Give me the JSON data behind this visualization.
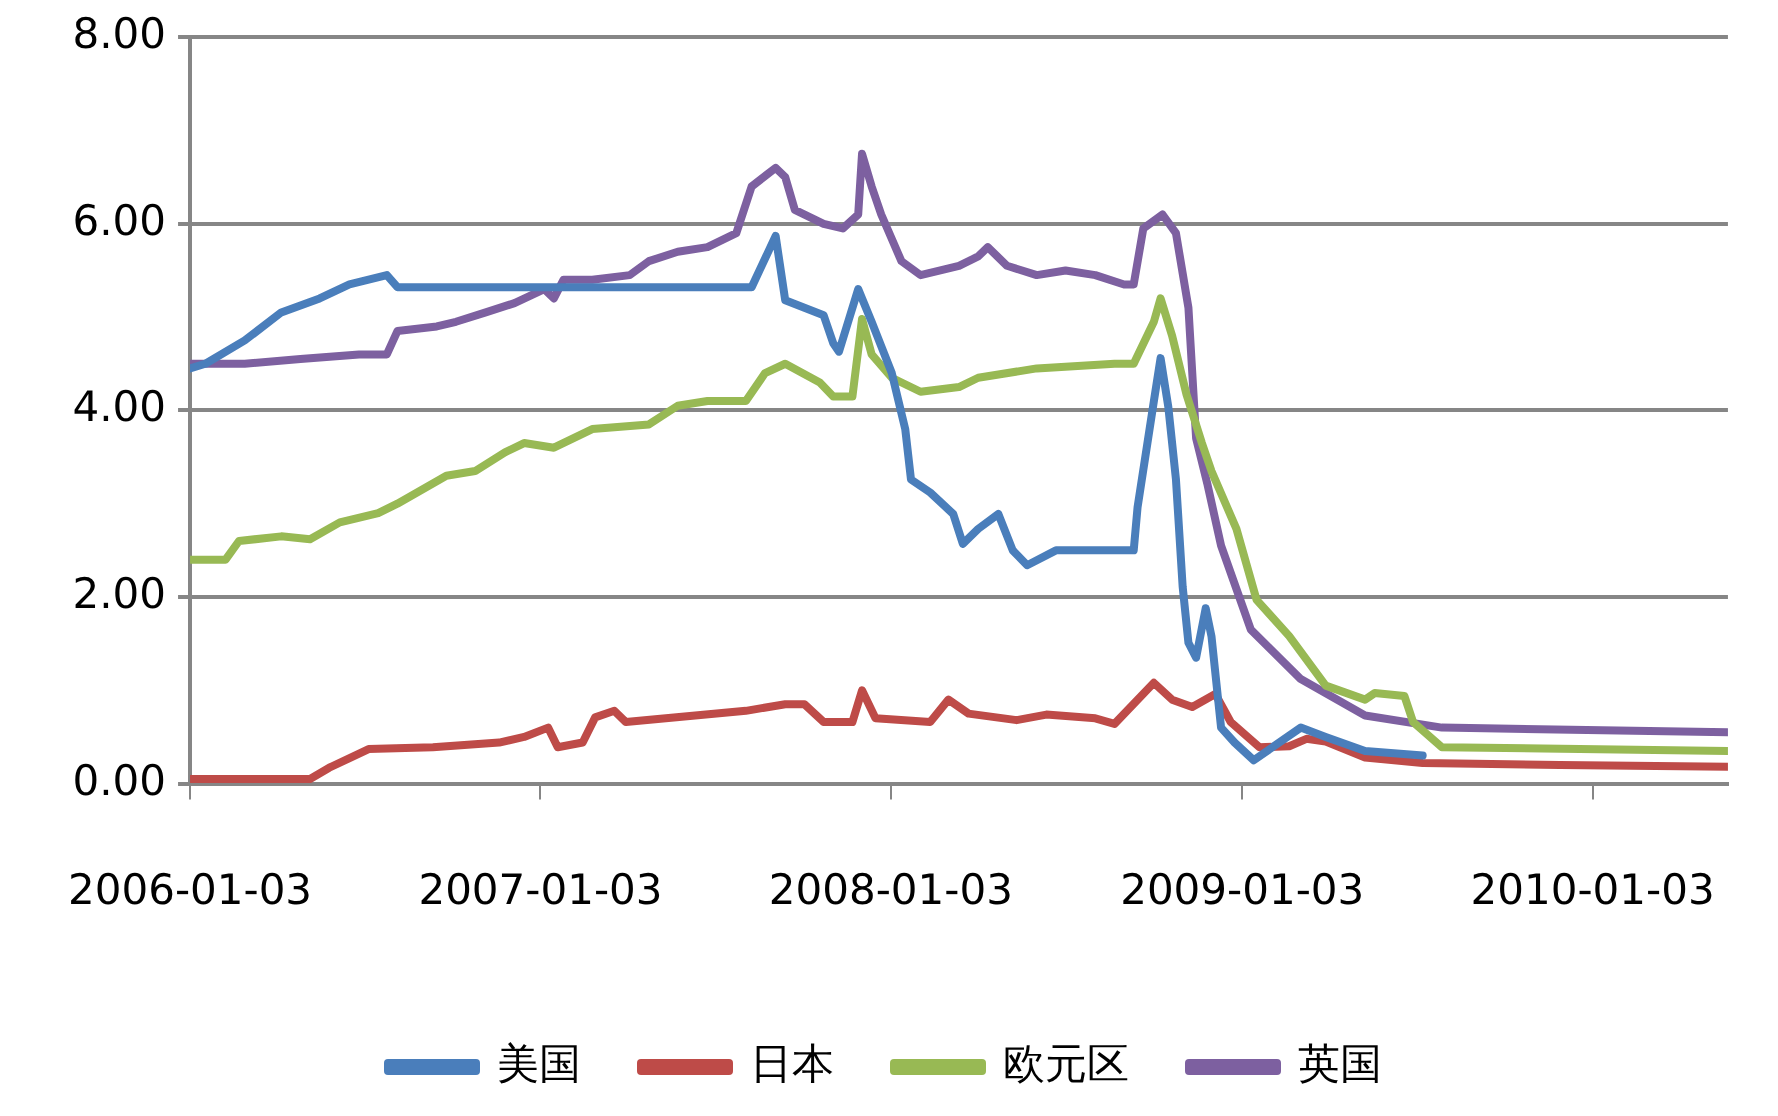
{
  "chart_data": {
    "type": "line",
    "ylim": [
      0,
      8
    ],
    "yticks": [
      {
        "value": 0,
        "label": "0.00"
      },
      {
        "value": 2,
        "label": "2.00"
      },
      {
        "value": 4,
        "label": "4.00"
      },
      {
        "value": 6,
        "label": "6.00"
      },
      {
        "value": 8,
        "label": "8.00"
      }
    ],
    "xlim": [
      "2006-01-03",
      "2010-05-24"
    ],
    "xticks": [
      "2006-01-03",
      "2007-01-03",
      "2008-01-03",
      "2009-01-03",
      "2010-01-03"
    ],
    "grid": "y",
    "legend": "bottom",
    "marker": "none",
    "line_style": "solid",
    "series": [
      {
        "name": "美国",
        "color": "#4a7ebb",
        "x": [
          "2006-01-03",
          "2006-01-19",
          "2006-03-01",
          "2006-04-08",
          "2006-05-18",
          "2006-06-18",
          "2006-07-27",
          "2006-08-07",
          "2007-08-11",
          "2007-09-05",
          "2007-09-15",
          "2007-10-25",
          "2007-11-04",
          "2007-11-10",
          "2007-11-30",
          "2007-12-14",
          "2008-01-04",
          "2008-01-18",
          "2008-01-24",
          "2008-02-13",
          "2008-03-08",
          "2008-03-18",
          "2008-04-03",
          "2008-04-24",
          "2008-05-09",
          "2008-05-24",
          "2008-06-23",
          "2008-09-12",
          "2008-09-16",
          "2008-10-03",
          "2008-10-10",
          "2008-10-18",
          "2008-10-26",
          "2008-11-02",
          "2008-11-08",
          "2008-11-16",
          "2008-11-26",
          "2008-12-02",
          "2008-12-12",
          "2008-12-26",
          "2009-01-15",
          "2009-03-05",
          "2009-03-31",
          "2009-05-11",
          "2009-07-10"
        ],
        "values": [
          4.45,
          4.5,
          4.75,
          5.05,
          5.2,
          5.35,
          5.45,
          5.32,
          5.32,
          5.87,
          5.18,
          5.02,
          4.72,
          4.63,
          5.3,
          4.95,
          4.4,
          3.8,
          3.26,
          3.12,
          2.89,
          2.57,
          2.73,
          2.89,
          2.5,
          2.34,
          2.5,
          2.5,
          2.96,
          4.1,
          4.56,
          4.04,
          3.26,
          2.11,
          1.51,
          1.35,
          1.88,
          1.58,
          0.6,
          0.44,
          0.25,
          0.6,
          0.5,
          0.35,
          0.3
        ]
      },
      {
        "name": "日本",
        "color": "#be4b48",
        "x": [
          "2006-01-03",
          "2006-05-08",
          "2006-05-28",
          "2006-07-08",
          "2006-09-13",
          "2006-11-21",
          "2006-12-17",
          "2007-01-11",
          "2007-01-21",
          "2007-02-16",
          "2007-03-01",
          "2007-03-21",
          "2007-04-02",
          "2007-08-05",
          "2007-09-15",
          "2007-10-05",
          "2007-10-25",
          "2007-11-24",
          "2007-12-04",
          "2007-12-18",
          "2008-02-13",
          "2008-03-03",
          "2008-03-24",
          "2008-05-13",
          "2008-06-13",
          "2008-08-03",
          "2008-08-23",
          "2008-10-03",
          "2008-10-22",
          "2008-11-12",
          "2008-12-06",
          "2008-12-22",
          "2009-01-21",
          "2009-02-21",
          "2009-03-11",
          "2009-03-31",
          "2009-05-11",
          "2009-07-10",
          "2009-11-30",
          "2010-05-24"
        ],
        "values": [
          0.05,
          0.05,
          0.17,
          0.37,
          0.39,
          0.44,
          0.5,
          0.6,
          0.39,
          0.44,
          0.71,
          0.78,
          0.66,
          0.78,
          0.85,
          0.85,
          0.66,
          0.66,
          1.0,
          0.7,
          0.66,
          0.9,
          0.75,
          0.68,
          0.74,
          0.7,
          0.64,
          1.08,
          0.9,
          0.82,
          0.96,
          0.66,
          0.39,
          0.4,
          0.48,
          0.45,
          0.28,
          0.22,
          0.2,
          0.18
        ]
      },
      {
        "name": "欧元区",
        "color": "#98b954",
        "x": [
          "2006-01-03",
          "2006-02-09",
          "2006-02-23",
          "2006-04-08",
          "2006-05-08",
          "2006-06-08",
          "2006-07-18",
          "2006-08-07",
          "2006-09-27",
          "2006-10-27",
          "2006-11-27",
          "2006-12-17",
          "2007-01-17",
          "2007-02-26",
          "2007-04-26",
          "2007-05-26",
          "2007-06-26",
          "2007-08-05",
          "2007-08-25",
          "2007-09-15",
          "2007-10-21",
          "2007-11-04",
          "2007-11-24",
          "2007-12-04",
          "2007-12-14",
          "2008-01-04",
          "2008-02-03",
          "2008-03-14",
          "2008-04-03",
          "2008-06-03",
          "2008-08-23",
          "2008-09-12",
          "2008-10-03",
          "2008-10-10",
          "2008-10-22",
          "2008-11-06",
          "2008-11-22",
          "2008-12-02",
          "2008-12-28",
          "2009-01-18",
          "2009-02-21",
          "2009-03-31",
          "2009-05-11",
          "2009-05-21",
          "2009-06-21",
          "2009-06-30",
          "2009-07-30",
          "2010-05-24"
        ],
        "values": [
          2.4,
          2.4,
          2.6,
          2.65,
          2.62,
          2.8,
          2.9,
          3.0,
          3.3,
          3.35,
          3.55,
          3.65,
          3.6,
          3.8,
          3.85,
          4.05,
          4.1,
          4.1,
          4.4,
          4.5,
          4.3,
          4.15,
          4.15,
          4.98,
          4.6,
          4.35,
          4.2,
          4.25,
          4.35,
          4.45,
          4.5,
          4.5,
          4.95,
          5.2,
          4.8,
          4.17,
          3.65,
          3.35,
          2.73,
          1.97,
          1.58,
          1.05,
          0.9,
          0.97,
          0.94,
          0.66,
          0.39,
          0.35
        ]
      },
      {
        "name": "英国",
        "color": "#7d60a0",
        "x": [
          "2006-01-03",
          "2006-03-01",
          "2006-04-28",
          "2006-06-28",
          "2006-07-27",
          "2006-08-07",
          "2006-09-17",
          "2006-10-07",
          "2006-11-07",
          "2006-12-07",
          "2007-01-07",
          "2007-01-17",
          "2007-01-27",
          "2007-02-26",
          "2007-04-06",
          "2007-04-26",
          "2007-05-26",
          "2007-06-26",
          "2007-07-26",
          "2007-08-11",
          "2007-09-05",
          "2007-09-15",
          "2007-09-25",
          "2007-10-25",
          "2007-11-14",
          "2007-11-30",
          "2007-12-04",
          "2007-12-14",
          "2007-12-24",
          "2008-01-14",
          "2008-02-03",
          "2008-03-14",
          "2008-04-03",
          "2008-04-13",
          "2008-05-03",
          "2008-06-03",
          "2008-07-03",
          "2008-08-03",
          "2008-09-02",
          "2008-09-12",
          "2008-09-22",
          "2008-10-12",
          "2008-10-26",
          "2008-11-08",
          "2008-11-16",
          "2008-11-28",
          "2008-12-12",
          "2009-01-12",
          "2009-03-05",
          "2009-05-11",
          "2009-07-30",
          "2010-05-24"
        ],
        "values": [
          4.5,
          4.5,
          4.55,
          4.6,
          4.6,
          4.85,
          4.9,
          4.95,
          5.05,
          5.15,
          5.3,
          5.2,
          5.4,
          5.4,
          5.45,
          5.6,
          5.7,
          5.75,
          5.9,
          6.4,
          6.6,
          6.5,
          6.15,
          6.0,
          5.95,
          6.1,
          6.75,
          6.4,
          6.1,
          5.6,
          5.45,
          5.55,
          5.65,
          5.75,
          5.55,
          5.45,
          5.5,
          5.45,
          5.35,
          5.35,
          5.95,
          6.1,
          5.9,
          5.1,
          3.7,
          3.2,
          2.55,
          1.65,
          1.12,
          0.73,
          0.6,
          0.55
        ]
      }
    ]
  }
}
